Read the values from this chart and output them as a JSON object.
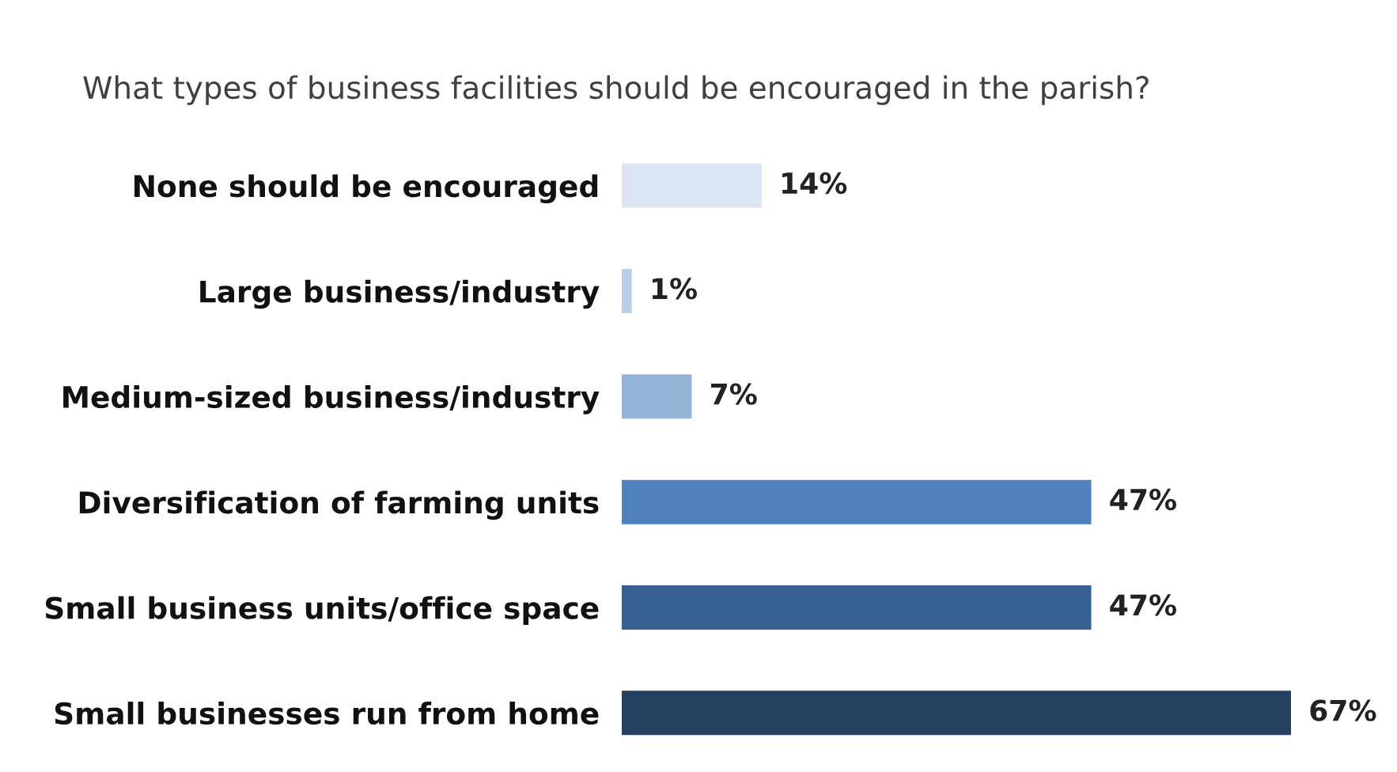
{
  "chart_data": {
    "type": "bar",
    "orientation": "horizontal",
    "title": "What types of business facilities should be encouraged in the parish?",
    "categories": [
      "None should be encouraged",
      "Large business/industry",
      "Medium-sized business/industry",
      "Diversification of farming units",
      "Small business units/office space",
      "Small businesses run from home"
    ],
    "values": [
      14,
      1,
      7,
      47,
      47,
      67
    ],
    "colors": [
      "#dce6f2",
      "#b9cde5",
      "#95b3d7",
      "#4f81bd",
      "#376092",
      "#254061"
    ],
    "value_labels": [
      "14%",
      "1%",
      "7%",
      "47%",
      "47%",
      "67%"
    ],
    "tick_labels": "y",
    "grid": false,
    "legend": false
  }
}
